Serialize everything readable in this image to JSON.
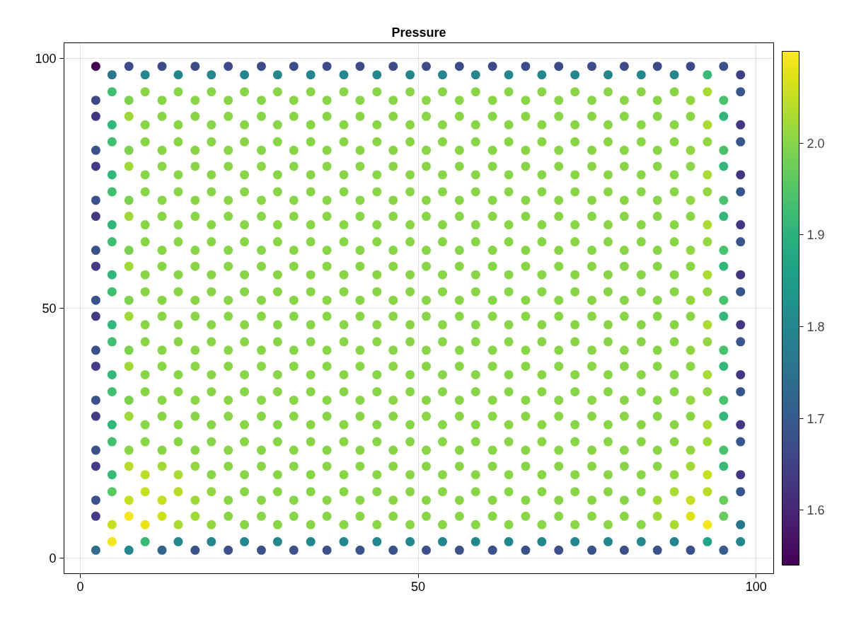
{
  "chart_data": {
    "type": "scatter",
    "title": "Pressure",
    "marker": "circle",
    "grid": true,
    "xlim": [
      -2.4,
      102.6
    ],
    "ylim": [
      -3.1,
      103.1
    ],
    "xticks": [
      0,
      50,
      100
    ],
    "yticks": [
      0,
      50,
      100
    ],
    "clim": [
      1.54,
      2.1
    ],
    "cticks": [
      1.6,
      1.7,
      1.8,
      1.9,
      {
        "value": 2,
        "label": "2.0"
      }
    ],
    "x": [
      2.3,
      2.3,
      2.3,
      2.3,
      2.3,
      2.3,
      2.3,
      2.3,
      2.3,
      2.3,
      2.3,
      2.3,
      2.3,
      2.3,
      2.3,
      2.3,
      2.3,
      2.3,
      2.3,
      2.3,
      4.7,
      4.7,
      4.7,
      4.7,
      4.7,
      4.7,
      4.7,
      4.7,
      4.7,
      4.7,
      4.7,
      4.7,
      4.7,
      4.7,
      4.7,
      4.7,
      4.7,
      4.7,
      4.7,
      4.7,
      7.2,
      7.2,
      7.2,
      7.2,
      7.2,
      7.2,
      7.2,
      7.2,
      7.2,
      7.2,
      7.2,
      7.2,
      7.2,
      7.2,
      7.2,
      7.2,
      7.2,
      7.2,
      7.2,
      7.2,
      9.6,
      9.6,
      9.6,
      9.6,
      9.6,
      9.6,
      9.6,
      9.6,
      9.6,
      9.6,
      9.6,
      9.6,
      9.6,
      9.6,
      9.6,
      9.6,
      9.6,
      9.6,
      9.6,
      9.6,
      12.1,
      12.1,
      12.1,
      12.1,
      12.1,
      12.1,
      12.1,
      12.1,
      12.1,
      12.1,
      12.1,
      12.1,
      12.1,
      12.1,
      12.1,
      12.1,
      12.1,
      12.1,
      12.1,
      12.1,
      14.5,
      14.5,
      14.5,
      14.5,
      14.5,
      14.5,
      14.5,
      14.5,
      14.5,
      14.5,
      14.5,
      14.5,
      14.5,
      14.5,
      14.5,
      14.5,
      14.5,
      14.5,
      14.5,
      14.5,
      17.0,
      17.0,
      17.0,
      17.0,
      17.0,
      17.0,
      17.0,
      17.0,
      17.0,
      17.0,
      17.0,
      17.0,
      17.0,
      17.0,
      17.0,
      17.0,
      17.0,
      17.0,
      17.0,
      17.0,
      19.4,
      19.4,
      19.4,
      19.4,
      19.4,
      19.4,
      19.4,
      19.4,
      19.4,
      19.4,
      19.4,
      19.4,
      19.4,
      19.4,
      19.4,
      19.4,
      19.4,
      19.4,
      19.4,
      19.4,
      21.9,
      21.9,
      21.9,
      21.9,
      21.9,
      21.9,
      21.9,
      21.9,
      21.9,
      21.9,
      21.9,
      21.9,
      21.9,
      21.9,
      21.9,
      21.9,
      21.9,
      21.9,
      21.9,
      21.9,
      24.3,
      24.3,
      24.3,
      24.3,
      24.3,
      24.3,
      24.3,
      24.3,
      24.3,
      24.3,
      24.3,
      24.3,
      24.3,
      24.3,
      24.3,
      24.3,
      24.3,
      24.3,
      24.3,
      24.3,
      26.8,
      26.8,
      26.8,
      26.8,
      26.8,
      26.8,
      26.8,
      26.8,
      26.8,
      26.8,
      26.8,
      26.8,
      26.8,
      26.8,
      26.8,
      26.8,
      26.8,
      26.8,
      26.8,
      26.8,
      29.2,
      29.2,
      29.2,
      29.2,
      29.2,
      29.2,
      29.2,
      29.2,
      29.2,
      29.2,
      29.2,
      29.2,
      29.2,
      29.2,
      29.2,
      29.2,
      29.2,
      29.2,
      29.2,
      29.2,
      31.6,
      31.6,
      31.6,
      31.6,
      31.6,
      31.6,
      31.6,
      31.6,
      31.6,
      31.6,
      31.6,
      31.6,
      31.6,
      31.6,
      31.6,
      31.6,
      31.6,
      31.6,
      31.6,
      31.6,
      34.1,
      34.1,
      34.1,
      34.1,
      34.1,
      34.1,
      34.1,
      34.1,
      34.1,
      34.1,
      34.1,
      34.1,
      34.1,
      34.1,
      34.1,
      34.1,
      34.1,
      34.1,
      34.1,
      34.1,
      36.5,
      36.5,
      36.5,
      36.5,
      36.5,
      36.5,
      36.5,
      36.5,
      36.5,
      36.5,
      36.5,
      36.5,
      36.5,
      36.5,
      36.5,
      36.5,
      36.5,
      36.5,
      36.5,
      36.5,
      39.0,
      39.0,
      39.0,
      39.0,
      39.0,
      39.0,
      39.0,
      39.0,
      39.0,
      39.0,
      39.0,
      39.0,
      39.0,
      39.0,
      39.0,
      39.0,
      39.0,
      39.0,
      39.0,
      39.0,
      41.4,
      41.4,
      41.4,
      41.4,
      41.4,
      41.4,
      41.4,
      41.4,
      41.4,
      41.4,
      41.4,
      41.4,
      41.4,
      41.4,
      41.4,
      41.4,
      41.4,
      41.4,
      41.4,
      41.4,
      43.9,
      43.9,
      43.9,
      43.9,
      43.9,
      43.9,
      43.9,
      43.9,
      43.9,
      43.9,
      43.9,
      43.9,
      43.9,
      43.9,
      43.9,
      43.9,
      43.9,
      43.9,
      43.9,
      43.9,
      46.3,
      46.3,
      46.3,
      46.3,
      46.3,
      46.3,
      46.3,
      46.3,
      46.3,
      46.3,
      46.3,
      46.3,
      46.3,
      46.3,
      46.3,
      46.3,
      46.3,
      46.3,
      46.3,
      46.3,
      48.8,
      48.8,
      48.8,
      48.8,
      48.8,
      48.8,
      48.8,
      48.8,
      48.8,
      48.8,
      48.8,
      48.8,
      48.8,
      48.8,
      48.8,
      48.8,
      48.8,
      48.8,
      48.8,
      48.8,
      51.2,
      51.2,
      51.2,
      51.2,
      51.2,
      51.2,
      51.2,
      51.2,
      51.2,
      51.2,
      51.2,
      51.2,
      51.2,
      51.2,
      51.2,
      51.2,
      51.2,
      51.2,
      51.2,
      51.2,
      53.6,
      53.6,
      53.6,
      53.6,
      53.6,
      53.6,
      53.6,
      53.6,
      53.6,
      53.6,
      53.6,
      53.6,
      53.6,
      53.6,
      53.6,
      53.6,
      53.6,
      53.6,
      53.6,
      53.6,
      56.1,
      56.1,
      56.1,
      56.1,
      56.1,
      56.1,
      56.1,
      56.1,
      56.1,
      56.1,
      56.1,
      56.1,
      56.1,
      56.1,
      56.1,
      56.1,
      56.1,
      56.1,
      56.1,
      56.1,
      58.5,
      58.5,
      58.5,
      58.5,
      58.5,
      58.5,
      58.5,
      58.5,
      58.5,
      58.5,
      58.5,
      58.5,
      58.5,
      58.5,
      58.5,
      58.5,
      58.5,
      58.5,
      58.5,
      58.5,
      61.0,
      61.0,
      61.0,
      61.0,
      61.0,
      61.0,
      61.0,
      61.0,
      61.0,
      61.0,
      61.0,
      61.0,
      61.0,
      61.0,
      61.0,
      61.0,
      61.0,
      61.0,
      61.0,
      61.0,
      63.4,
      63.4,
      63.4,
      63.4,
      63.4,
      63.4,
      63.4,
      63.4,
      63.4,
      63.4,
      63.4,
      63.4,
      63.4,
      63.4,
      63.4,
      63.4,
      63.4,
      63.4,
      63.4,
      63.4,
      65.9,
      65.9,
      65.9,
      65.9,
      65.9,
      65.9,
      65.9,
      65.9,
      65.9,
      65.9,
      65.9,
      65.9,
      65.9,
      65.9,
      65.9,
      65.9,
      65.9,
      65.9,
      65.9,
      65.9,
      68.3,
      68.3,
      68.3,
      68.3,
      68.3,
      68.3,
      68.3,
      68.3,
      68.3,
      68.3,
      68.3,
      68.3,
      68.3,
      68.3,
      68.3,
      68.3,
      68.3,
      68.3,
      68.3,
      68.3,
      70.8,
      70.8,
      70.8,
      70.8,
      70.8,
      70.8,
      70.8,
      70.8,
      70.8,
      70.8,
      70.8,
      70.8,
      70.8,
      70.8,
      70.8,
      70.8,
      70.8,
      70.8,
      70.8,
      70.8,
      73.2,
      73.2,
      73.2,
      73.2,
      73.2,
      73.2,
      73.2,
      73.2,
      73.2,
      73.2,
      73.2,
      73.2,
      73.2,
      73.2,
      73.2,
      73.2,
      73.2,
      73.2,
      73.2,
      73.2,
      75.7,
      75.7,
      75.7,
      75.7,
      75.7,
      75.7,
      75.7,
      75.7,
      75.7,
      75.7,
      75.7,
      75.7,
      75.7,
      75.7,
      75.7,
      75.7,
      75.7,
      75.7,
      75.7,
      75.7,
      78.1,
      78.1,
      78.1,
      78.1,
      78.1,
      78.1,
      78.1,
      78.1,
      78.1,
      78.1,
      78.1,
      78.1,
      78.1,
      78.1,
      78.1,
      78.1,
      78.1,
      78.1,
      78.1,
      78.1,
      80.5,
      80.5,
      80.5,
      80.5,
      80.5,
      80.5,
      80.5,
      80.5,
      80.5,
      80.5,
      80.5,
      80.5,
      80.5,
      80.5,
      80.5,
      80.5,
      80.5,
      80.5,
      80.5,
      80.5,
      83.0,
      83.0,
      83.0,
      83.0,
      83.0,
      83.0,
      83.0,
      83.0,
      83.0,
      83.0,
      83.0,
      83.0,
      83.0,
      83.0,
      83.0,
      83.0,
      83.0,
      83.0,
      83.0,
      83.0,
      85.4,
      85.4,
      85.4,
      85.4,
      85.4,
      85.4,
      85.4,
      85.4,
      85.4,
      85.4,
      85.4,
      85.4,
      85.4,
      85.4,
      85.4,
      85.4,
      85.4,
      85.4,
      85.4,
      85.4,
      87.9,
      87.9,
      87.9,
      87.9,
      87.9,
      87.9,
      87.9,
      87.9,
      87.9,
      87.9,
      87.9,
      87.9,
      87.9,
      87.9,
      87.9,
      87.9,
      87.9,
      87.9,
      87.9,
      87.9,
      90.3,
      90.3,
      90.3,
      90.3,
      90.3,
      90.3,
      90.3,
      90.3,
      90.3,
      90.3,
      90.3,
      90.3,
      90.3,
      90.3,
      90.3,
      90.3,
      90.3,
      90.3,
      90.3,
      90.3,
      92.8,
      92.8,
      92.8,
      92.8,
      92.8,
      92.8,
      92.8,
      92.8,
      92.8,
      92.8,
      92.8,
      92.8,
      92.8,
      92.8,
      92.8,
      92.8,
      92.8,
      92.8,
      92.8,
      92.8,
      95.2,
      95.2,
      95.2,
      95.2,
      95.2,
      95.2,
      95.2,
      95.2,
      95.2,
      95.2,
      95.2,
      95.2,
      95.2,
      95.2,
      95.2,
      95.2,
      95.2,
      95.2,
      95.2,
      95.2,
      97.7,
      97.7,
      97.7,
      97.7,
      97.7,
      97.7,
      97.7,
      97.7,
      97.7,
      97.7,
      97.7,
      97.7,
      97.7,
      97.7,
      97.7,
      97.7,
      97.7,
      97.7,
      97.7,
      97.7
    ],
    "values": [
      98.4,
      91.6,
      88.4,
      81.6,
      78.4,
      71.6,
      68.4,
      61.6,
      58.4,
      51.6,
      48.4,
      41.6,
      38.4,
      31.6,
      28.4,
      21.6,
      18.4,
      11.6,
      8.4,
      1.6,
      96.7,
      93.3,
      86.7,
      83.3,
      76.7,
      73.3,
      66.7,
      63.3,
      56.7,
      53.3,
      46.7,
      43.3,
      36.7,
      33.3,
      26.7,
      23.3,
      16.7,
      13.3,
      6.7,
      3.3,
      98.4,
      91.6,
      88.4,
      81.6,
      78.4,
      71.6,
      68.4,
      61.6,
      58.4,
      51.6,
      48.4,
      41.6,
      38.4,
      31.6,
      28.4,
      21.6,
      18.4,
      11.6,
      8.4,
      1.6,
      96.7,
      93.3,
      86.7,
      83.3,
      76.7,
      73.3,
      66.7,
      63.3,
      56.7,
      53.3,
      46.7,
      43.3,
      36.7,
      33.3,
      26.7,
      23.3,
      16.7,
      13.3,
      6.7,
      3.3,
      98.4,
      91.6,
      88.4,
      81.6,
      78.4,
      71.6,
      68.4,
      61.6,
      58.4,
      51.6,
      48.4,
      41.6,
      38.4,
      31.6,
      28.4,
      21.6,
      18.4,
      11.6,
      8.4,
      1.6,
      96.7,
      93.3,
      86.7,
      83.3,
      76.7,
      73.3,
      66.7,
      63.3,
      56.7,
      53.3,
      46.7,
      43.3,
      36.7,
      33.3,
      26.7,
      23.3,
      16.7,
      13.3,
      6.7,
      3.3,
      98.4,
      91.6,
      88.4,
      81.6,
      78.4,
      71.6,
      68.4,
      61.6,
      58.4,
      51.6,
      48.4,
      41.6,
      38.4,
      31.6,
      28.4,
      21.6,
      18.4,
      11.6,
      8.4,
      1.6,
      96.7,
      93.3,
      86.7,
      83.3,
      76.7,
      73.3,
      66.7,
      63.3,
      56.7,
      53.3,
      46.7,
      43.3,
      36.7,
      33.3,
      26.7,
      23.3,
      16.7,
      13.3,
      6.7,
      3.3,
      98.4,
      91.6,
      88.4,
      81.6,
      78.4,
      71.6,
      68.4,
      61.6,
      58.4,
      51.6,
      48.4,
      41.6,
      38.4,
      31.6,
      28.4,
      21.6,
      18.4,
      11.6,
      8.4,
      1.6,
      96.7,
      93.3,
      86.7,
      83.3,
      76.7,
      73.3,
      66.7,
      63.3,
      56.7,
      53.3,
      46.7,
      43.3,
      36.7,
      33.3,
      26.7,
      23.3,
      16.7,
      13.3,
      6.7,
      3.3,
      98.4,
      91.6,
      88.4,
      81.6,
      78.4,
      71.6,
      68.4,
      61.6,
      58.4,
      51.6,
      48.4,
      41.6,
      38.4,
      31.6,
      28.4,
      21.6,
      18.4,
      11.6,
      8.4,
      1.6,
      96.7,
      93.3,
      86.7,
      83.3,
      76.7,
      73.3,
      66.7,
      63.3,
      56.7,
      53.3,
      46.7,
      43.3,
      36.7,
      33.3,
      26.7,
      23.3,
      16.7,
      13.3,
      6.7,
      3.3,
      98.4,
      91.6,
      88.4,
      81.6,
      78.4,
      71.6,
      68.4,
      61.6,
      58.4,
      51.6,
      48.4,
      41.6,
      38.4,
      31.6,
      28.4,
      21.6,
      18.4,
      11.6,
      8.4,
      1.6,
      96.7,
      93.3,
      86.7,
      83.3,
      76.7,
      73.3,
      66.7,
      63.3,
      56.7,
      53.3,
      46.7,
      43.3,
      36.7,
      33.3,
      26.7,
      23.3,
      16.7,
      13.3,
      6.7,
      3.3,
      98.4,
      91.6,
      88.4,
      81.6,
      78.4,
      71.6,
      68.4,
      61.6,
      58.4,
      51.6,
      48.4,
      41.6,
      38.4,
      31.6,
      28.4,
      21.6,
      18.4,
      11.6,
      8.4,
      1.6,
      96.7,
      93.3,
      86.7,
      83.3,
      76.7,
      73.3,
      66.7,
      63.3,
      56.7,
      53.3,
      46.7,
      43.3,
      36.7,
      33.3,
      26.7,
      23.3,
      16.7,
      13.3,
      6.7,
      3.3,
      98.4,
      91.6,
      88.4,
      81.6,
      78.4,
      71.6,
      68.4,
      61.6,
      58.4,
      51.6,
      48.4,
      41.6,
      38.4,
      31.6,
      28.4,
      21.6,
      18.4,
      11.6,
      8.4,
      1.6,
      96.7,
      93.3,
      86.7,
      83.3,
      76.7,
      73.3,
      66.7,
      63.3,
      56.7,
      53.3,
      46.7,
      43.3,
      36.7,
      33.3,
      26.7,
      23.3,
      16.7,
      13.3,
      6.7,
      3.3,
      98.4,
      91.6,
      88.4,
      81.6,
      78.4,
      71.6,
      68.4,
      61.6,
      58.4,
      51.6,
      48.4,
      41.6,
      38.4,
      31.6,
      28.4,
      21.6,
      18.4,
      11.6,
      8.4,
      1.6,
      96.7,
      93.3,
      86.7,
      83.3,
      76.7,
      73.3,
      66.7,
      63.3,
      56.7,
      53.3,
      46.7,
      43.3,
      36.7,
      33.3,
      26.7,
      23.3,
      16.7,
      13.3,
      6.7,
      3.3,
      98.4,
      91.6,
      88.4,
      81.6,
      78.4,
      71.6,
      68.4,
      61.6,
      58.4,
      51.6,
      48.4,
      41.6,
      38.4,
      31.6,
      28.4,
      21.6,
      18.4,
      11.6,
      8.4,
      1.6,
      96.7,
      93.3,
      86.7,
      83.3,
      76.7,
      73.3,
      66.7,
      63.3,
      56.7,
      53.3,
      46.7,
      43.3,
      36.7,
      33.3,
      26.7,
      23.3,
      16.7,
      13.3,
      6.7,
      3.3,
      98.4,
      91.6,
      88.4,
      81.6,
      78.4,
      71.6,
      68.4,
      61.6,
      58.4,
      51.6,
      48.4,
      41.6,
      38.4,
      31.6,
      28.4,
      21.6,
      18.4,
      11.6,
      8.4,
      1.6,
      96.7,
      93.3,
      86.7,
      83.3,
      76.7,
      73.3,
      66.7,
      63.3,
      56.7,
      53.3,
      46.7,
      43.3,
      36.7,
      33.3,
      26.7,
      23.3,
      16.7,
      13.3,
      6.7,
      3.3,
      98.4,
      91.6,
      88.4,
      81.6,
      78.4,
      71.6,
      68.4,
      61.6,
      58.4,
      51.6,
      48.4,
      41.6,
      38.4,
      31.6,
      28.4,
      21.6,
      18.4,
      11.6,
      8.4,
      1.6,
      96.7,
      93.3,
      86.7,
      83.3,
      76.7,
      73.3,
      66.7,
      63.3,
      56.7,
      53.3,
      46.7,
      43.3,
      36.7,
      33.3,
      26.7,
      23.3,
      16.7,
      13.3,
      6.7,
      3.3,
      98.4,
      91.6,
      88.4,
      81.6,
      78.4,
      71.6,
      68.4,
      61.6,
      58.4,
      51.6,
      48.4,
      41.6,
      38.4,
      31.6,
      28.4,
      21.6,
      18.4,
      11.6,
      8.4,
      1.6,
      96.7,
      93.3,
      86.7,
      83.3,
      76.7,
      73.3,
      66.7,
      63.3,
      56.7,
      53.3,
      46.7,
      43.3,
      36.7,
      33.3,
      26.7,
      23.3,
      16.7,
      13.3,
      6.7,
      3.3,
      98.4,
      91.6,
      88.4,
      81.6,
      78.4,
      71.6,
      68.4,
      61.6,
      58.4,
      51.6,
      48.4,
      41.6,
      38.4,
      31.6,
      28.4,
      21.6,
      18.4,
      11.6,
      8.4,
      1.6,
      96.7,
      93.3,
      86.7,
      83.3,
      76.7,
      73.3,
      66.7,
      63.3,
      56.7,
      53.3,
      46.7,
      43.3,
      36.7,
      33.3,
      26.7,
      23.3,
      16.7,
      13.3,
      6.7,
      3.3,
      98.4,
      91.6,
      88.4,
      81.6,
      78.4,
      71.6,
      68.4,
      61.6,
      58.4,
      51.6,
      48.4,
      41.6,
      38.4,
      31.6,
      28.4,
      21.6,
      18.4,
      11.6,
      8.4,
      1.6,
      96.7,
      93.3,
      86.7,
      83.3,
      76.7,
      73.3,
      66.7,
      63.3,
      56.7,
      53.3,
      46.7,
      43.3,
      36.7,
      33.3,
      26.7,
      23.3,
      16.7,
      13.3,
      6.7,
      3.3,
      98.4,
      91.6,
      88.4,
      81.6,
      78.4,
      71.6,
      68.4,
      61.6,
      58.4,
      51.6,
      48.4,
      41.6,
      38.4,
      31.6,
      28.4,
      21.6,
      18.4,
      11.6,
      8.4,
      1.6,
      96.7,
      93.3,
      86.7,
      83.3,
      76.7,
      73.3,
      66.7,
      63.3,
      56.7,
      53.3,
      46.7,
      43.3,
      36.7,
      33.3,
      26.7,
      23.3,
      16.7,
      13.3,
      6.7,
      3.3,
      98.4,
      91.6,
      88.4,
      81.6,
      78.4,
      71.6,
      68.4,
      61.6,
      58.4,
      51.6,
      48.4,
      41.6,
      38.4,
      31.6,
      28.4,
      21.6,
      18.4,
      11.6,
      8.4,
      1.6,
      96.7,
      93.3,
      86.7,
      83.3,
      76.7,
      73.3,
      66.7,
      63.3,
      56.7,
      53.3,
      46.7,
      43.3,
      36.7,
      33.3,
      26.7,
      23.3,
      16.7,
      13.3,
      6.7,
      3.3,
      98.4,
      91.6,
      88.4,
      81.6,
      78.4,
      71.6,
      68.4,
      61.6,
      58.4,
      51.6,
      48.4,
      41.6,
      38.4,
      31.6,
      28.4,
      21.6,
      18.4,
      11.6,
      8.4,
      1.6,
      96.7,
      93.3,
      86.7,
      83.3,
      76.7,
      73.3,
      66.7,
      63.3,
      56.7,
      53.3,
      46.7,
      43.3,
      36.7,
      33.3,
      26.7,
      23.3,
      16.7,
      13.3,
      6.7,
      3.3,
      98.4,
      91.6,
      88.4,
      81.6,
      78.4,
      71.6,
      68.4,
      61.6,
      58.4,
      51.6,
      48.4,
      41.6,
      38.4,
      31.6,
      28.4,
      21.6,
      18.4,
      11.6,
      8.4,
      1.6,
      96.7,
      93.3,
      86.7,
      83.3,
      76.7,
      73.3,
      66.7,
      63.3,
      56.7,
      53.3,
      46.7,
      43.3,
      36.7,
      33.3,
      26.7,
      23.3,
      16.7,
      13.3,
      6.7,
      3.3
    ],
    "cvalues": [
      1.54,
      1.66,
      1.63,
      1.68,
      1.64,
      1.68,
      1.64,
      1.68,
      1.64,
      1.68,
      1.64,
      1.68,
      1.64,
      1.68,
      1.64,
      1.68,
      1.64,
      1.68,
      1.64,
      1.74,
      1.76,
      1.93,
      1.91,
      1.93,
      1.91,
      1.93,
      1.91,
      1.93,
      1.91,
      1.93,
      1.91,
      1.93,
      1.91,
      1.93,
      1.91,
      1.93,
      1.92,
      1.96,
      2.05,
      2.09,
      1.67,
      1.99,
      2.02,
      1.99,
      2.02,
      1.99,
      2.02,
      1.99,
      2.02,
      1.99,
      2.02,
      1.99,
      2.02,
      1.99,
      2.02,
      2,
      2.04,
      2.05,
      2.09,
      1.8,
      1.8,
      2,
      2,
      2,
      2,
      2,
      2,
      2,
      2,
      2,
      2,
      2,
      2,
      2,
      2,
      2,
      2.04,
      2.05,
      2.08,
      1.92,
      1.67,
      2,
      2,
      2,
      2,
      2,
      2,
      2,
      2,
      2,
      2,
      2,
      2,
      2,
      2,
      2,
      2.02,
      2.05,
      2.06,
      1.72,
      1.8,
      2,
      2,
      2,
      2,
      2,
      2,
      2,
      2,
      2,
      2,
      2,
      2,
      2,
      2,
      2,
      2.03,
      2.04,
      2.03,
      1.8,
      1.67,
      2,
      2,
      2,
      2,
      2,
      2,
      2,
      2,
      2,
      2,
      2,
      2,
      2,
      2,
      2,
      2.01,
      2.02,
      2.02,
      1.68,
      1.8,
      2,
      2,
      2,
      2,
      2,
      2,
      2,
      2,
      2,
      2,
      2,
      2,
      2,
      2,
      2,
      2,
      2.01,
      2.01,
      1.8,
      1.67,
      2,
      2,
      2,
      2,
      2,
      2,
      2,
      2,
      2,
      2,
      2,
      2,
      2,
      2,
      2,
      2,
      2,
      2,
      1.68,
      1.8,
      2,
      2,
      2,
      2,
      2,
      2,
      2,
      2,
      2,
      2,
      2,
      2,
      2,
      2,
      2,
      2,
      2,
      2,
      1.8,
      1.67,
      2,
      2,
      2,
      2,
      2,
      2,
      2,
      2,
      2,
      2,
      2,
      2,
      2,
      2,
      2,
      2,
      2,
      2,
      1.68,
      1.8,
      2,
      2,
      2,
      2,
      2,
      2,
      2,
      2,
      2,
      2,
      2,
      2,
      2,
      2,
      2,
      2,
      2,
      2,
      1.8,
      1.67,
      2,
      2,
      2,
      2,
      2,
      2,
      2,
      2,
      2,
      2,
      2,
      2,
      2,
      2,
      2,
      2,
      2,
      2,
      1.68,
      1.8,
      2,
      2,
      2,
      2,
      2,
      2,
      2,
      2,
      2,
      2,
      2,
      2,
      2,
      2,
      2,
      2,
      2,
      2,
      1.8,
      1.67,
      2,
      2,
      2,
      2,
      2,
      2,
      2,
      2,
      2,
      2,
      2,
      2,
      2,
      2,
      2,
      2,
      2,
      2,
      1.68,
      1.8,
      2,
      2,
      2,
      2,
      2,
      2,
      2,
      2,
      2,
      2,
      2,
      2,
      2,
      2,
      2,
      2,
      2,
      2,
      1.8,
      1.67,
      2,
      2,
      2,
      2,
      2,
      2,
      2,
      2,
      2,
      2,
      2,
      2,
      2,
      2,
      2,
      2,
      2,
      2,
      1.68,
      1.8,
      2,
      2,
      2,
      2,
      2,
      2,
      2,
      2,
      2,
      2,
      2,
      2,
      2,
      2,
      2,
      2,
      2,
      2,
      1.8,
      1.67,
      2,
      2,
      2,
      2,
      2,
      2,
      2,
      2,
      2,
      2,
      2,
      2,
      2,
      2,
      2,
      2,
      2,
      2,
      1.68,
      1.8,
      2,
      2,
      2,
      2,
      2,
      2,
      2,
      2,
      2,
      2,
      2,
      2,
      2,
      2,
      2,
      2,
      2,
      2,
      1.8,
      1.67,
      2,
      2,
      2,
      2,
      2,
      2,
      2,
      2,
      2,
      2,
      2,
      2,
      2,
      2,
      2,
      2,
      2,
      2,
      1.68,
      1.8,
      2,
      2,
      2,
      2,
      2,
      2,
      2,
      2,
      2,
      2,
      2,
      2,
      2,
      2,
      2,
      2,
      2,
      2,
      1.8,
      1.67,
      2,
      2,
      2,
      2,
      2,
      2,
      2,
      2,
      2,
      2,
      2,
      2,
      2,
      2,
      2,
      2,
      2,
      2,
      1.68,
      1.8,
      2,
      2,
      2,
      2,
      2,
      2,
      2,
      2,
      2,
      2,
      2,
      2,
      2,
      2,
      2,
      2,
      2,
      2,
      1.8,
      1.67,
      2,
      2,
      2,
      2,
      2,
      2,
      2,
      2,
      2,
      2,
      2,
      2,
      2,
      2,
      2,
      2,
      2,
      2,
      1.68,
      1.8,
      2,
      2,
      2,
      2,
      2,
      2,
      2,
      2,
      2,
      2,
      2,
      2,
      2,
      2,
      2,
      2,
      2,
      2,
      1.8,
      1.67,
      2,
      2,
      2,
      2,
      2,
      2,
      2,
      2,
      2,
      2,
      2,
      2,
      2,
      2,
      2,
      2,
      2,
      2,
      1.68,
      1.8,
      2,
      2,
      2,
      2,
      2,
      2,
      2,
      2,
      2,
      2,
      2,
      2,
      2,
      2,
      2,
      2,
      2,
      2,
      1.8,
      1.67,
      2,
      2,
      2,
      2,
      2,
      2,
      2,
      2,
      2,
      2,
      2,
      2,
      2,
      2,
      2,
      2,
      2,
      2,
      1.68,
      1.8,
      2,
      2,
      2,
      2,
      2,
      2,
      2,
      2,
      2,
      2,
      2,
      2,
      2,
      2,
      2,
      2,
      2,
      2,
      1.8,
      1.67,
      2,
      2,
      2,
      2,
      2,
      2,
      2,
      2,
      2,
      2,
      2,
      2,
      2,
      2,
      2,
      2,
      2,
      2,
      1.68,
      1.8,
      2,
      2,
      2,
      2,
      2,
      2,
      2,
      2,
      2,
      2,
      2,
      2,
      2,
      2,
      2,
      2,
      2,
      2,
      1.8,
      1.67,
      2,
      2,
      2,
      2,
      2,
      2,
      2,
      2,
      2,
      2,
      2,
      2,
      2,
      2,
      2,
      2,
      2,
      2,
      1.68,
      1.8,
      2,
      2,
      2,
      2,
      2,
      2,
      2,
      2,
      2,
      2,
      2,
      2,
      2,
      2,
      2,
      2,
      2,
      2,
      1.8,
      1.67,
      2,
      2,
      2,
      2,
      2,
      2,
      2,
      2,
      2,
      2,
      2,
      2,
      2,
      2,
      2,
      2,
      2.02,
      2.02,
      1.68,
      1.8,
      2,
      2,
      2,
      2,
      2,
      2,
      2,
      2,
      2,
      2,
      2,
      2,
      2,
      2,
      2,
      2.01,
      2.03,
      2.03,
      1.8,
      1.67,
      2.01,
      2,
      2.01,
      2,
      2.01,
      2,
      2.01,
      2,
      2.01,
      2,
      2.01,
      2,
      2.01,
      2,
      2.01,
      2.02,
      2.05,
      2.07,
      1.68,
      1.92,
      2.03,
      2.03,
      2.01,
      2.03,
      2.01,
      2.03,
      2.01,
      2.03,
      2.01,
      2.03,
      2.01,
      2.03,
      2.01,
      2.03,
      2.02,
      2.05,
      2.04,
      2.09,
      1.87,
      1.68,
      1.94,
      1.91,
      1.94,
      1.91,
      1.94,
      1.91,
      1.94,
      1.91,
      1.94,
      1.91,
      1.94,
      1.91,
      1.94,
      1.91,
      1.94,
      1.92,
      1.97,
      1.97,
      1.7,
      1.65,
      1.69,
      1.63,
      1.69,
      1.63,
      1.69,
      1.63,
      1.69,
      1.63,
      1.69,
      1.63,
      1.69,
      1.63,
      1.69,
      1.63,
      1.69,
      1.63,
      1.69,
      1.76,
      1.8
    ]
  }
}
